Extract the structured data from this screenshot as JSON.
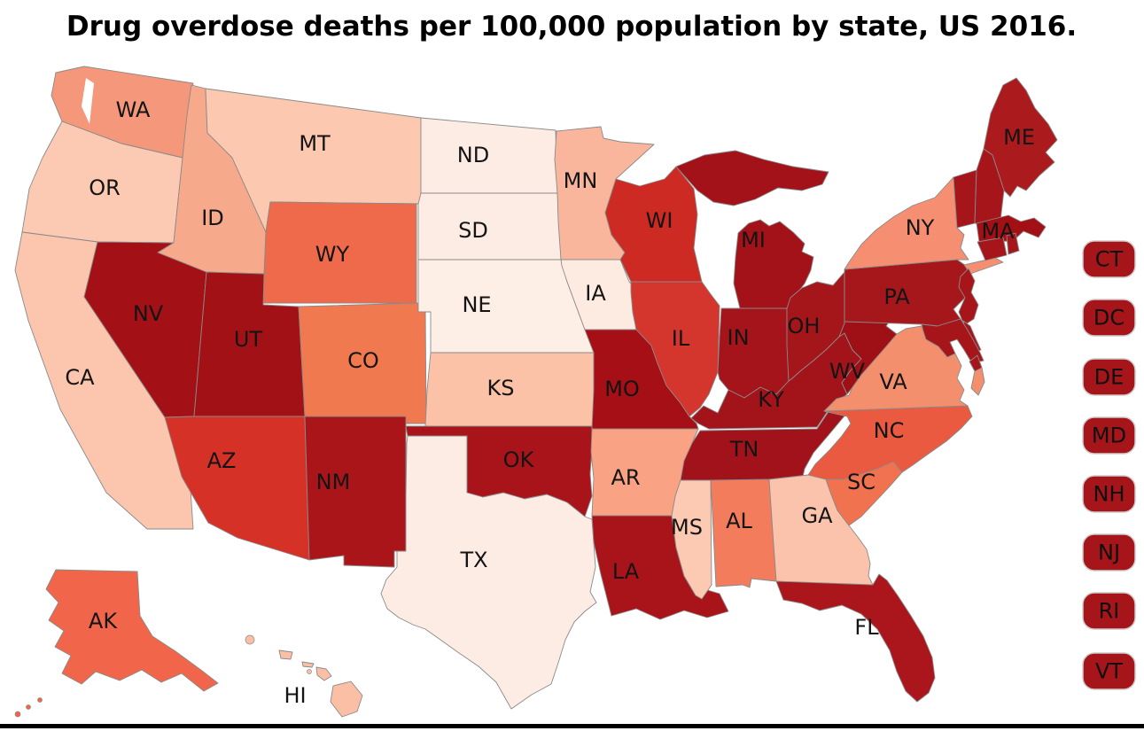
{
  "title": "Drug overdose deaths per 100,000 population by state, US 2016.",
  "figure": {
    "background": "#ffffff",
    "state_border_color": "#8a8a8a",
    "legend_box_border_color": "#cccccc",
    "bottom_rule_color": "#000000",
    "label_color": "#141414"
  },
  "states": [
    {
      "id": "WA",
      "label": "WA",
      "color": "#f5977a",
      "on_map_label": true
    },
    {
      "id": "OR",
      "label": "OR",
      "color": "#fcc9b2",
      "on_map_label": true
    },
    {
      "id": "CA",
      "label": "CA",
      "color": "#fbc6ad",
      "on_map_label": true
    },
    {
      "id": "NV",
      "label": "NV",
      "color": "#a31016",
      "on_map_label": true
    },
    {
      "id": "ID",
      "label": "ID",
      "color": "#f7a98c",
      "on_map_label": true
    },
    {
      "id": "MT",
      "label": "MT",
      "color": "#fcc8b0",
      "on_map_label": true
    },
    {
      "id": "WY",
      "label": "WY",
      "color": "#ef6a4a",
      "on_map_label": true
    },
    {
      "id": "UT",
      "label": "UT",
      "color": "#a21116",
      "on_map_label": true
    },
    {
      "id": "CO",
      "label": "CO",
      "color": "#f1794f",
      "on_map_label": true
    },
    {
      "id": "AZ",
      "label": "AZ",
      "color": "#d63127",
      "on_map_label": true
    },
    {
      "id": "NM",
      "label": "NM",
      "color": "#a91519",
      "on_map_label": true
    },
    {
      "id": "ND",
      "label": "ND",
      "color": "#fdece4",
      "on_map_label": true
    },
    {
      "id": "SD",
      "label": "SD",
      "color": "#fdece4",
      "on_map_label": true
    },
    {
      "id": "NE",
      "label": "NE",
      "color": "#fdeee6",
      "on_map_label": true
    },
    {
      "id": "KS",
      "label": "KS",
      "color": "#fbc2a7",
      "on_map_label": true
    },
    {
      "id": "OK",
      "label": "OK",
      "color": "#a81419",
      "on_map_label": true
    },
    {
      "id": "TX",
      "label": "TX",
      "color": "#fdece3",
      "on_map_label": true
    },
    {
      "id": "MN",
      "label": "MN",
      "color": "#f9b69c",
      "on_map_label": true
    },
    {
      "id": "IA",
      "label": "IA",
      "color": "#fdebe2",
      "on_map_label": true
    },
    {
      "id": "MO",
      "label": "MO",
      "color": "#a50f15",
      "on_map_label": true
    },
    {
      "id": "AR",
      "label": "AR",
      "color": "#f9a284",
      "on_map_label": true
    },
    {
      "id": "LA",
      "label": "LA",
      "color": "#a81419",
      "on_map_label": true
    },
    {
      "id": "WI",
      "label": "WI",
      "color": "#cc2a22",
      "on_map_label": true
    },
    {
      "id": "IL",
      "label": "IL",
      "color": "#d4352c",
      "on_map_label": true
    },
    {
      "id": "MI",
      "label": "MI",
      "color": "#a31219",
      "on_map_label": true
    },
    {
      "id": "IN",
      "label": "IN",
      "color": "#a4141a",
      "on_map_label": true
    },
    {
      "id": "OH",
      "label": "OH",
      "color": "#a5161b",
      "on_map_label": true
    },
    {
      "id": "KY",
      "label": "KY",
      "color": "#a3131a",
      "on_map_label": true
    },
    {
      "id": "TN",
      "label": "TN",
      "color": "#a2121b",
      "on_map_label": true
    },
    {
      "id": "MS",
      "label": "MS",
      "color": "#fcc9b3",
      "on_map_label": true
    },
    {
      "id": "AL",
      "label": "AL",
      "color": "#f37c5c",
      "on_map_label": true
    },
    {
      "id": "GA",
      "label": "GA",
      "color": "#fbc3ab",
      "on_map_label": true
    },
    {
      "id": "FL",
      "label": "FL",
      "color": "#aa161b",
      "on_map_label": true
    },
    {
      "id": "SC",
      "label": "SC",
      "color": "#f0724f",
      "on_map_label": true
    },
    {
      "id": "NC",
      "label": "NC",
      "color": "#e95a40",
      "on_map_label": true
    },
    {
      "id": "VA",
      "label": "VA",
      "color": "#f48f6e",
      "on_map_label": true
    },
    {
      "id": "WV",
      "label": "WV",
      "color": "#9e1016",
      "on_map_label": true
    },
    {
      "id": "PA",
      "label": "PA",
      "color": "#a6171c",
      "on_map_label": true
    },
    {
      "id": "NY",
      "label": "NY",
      "color": "#f68f72",
      "on_map_label": true
    },
    {
      "id": "ME",
      "label": "ME",
      "color": "#ab1a1d",
      "on_map_label": true
    },
    {
      "id": "VT",
      "label": "VT",
      "color": "#a5151a",
      "on_map_label": false
    },
    {
      "id": "NH",
      "label": "NH",
      "color": "#a5151a",
      "on_map_label": false
    },
    {
      "id": "MA",
      "label": "MA",
      "color": "#a20f15",
      "on_map_label": true
    },
    {
      "id": "CT",
      "label": "CT",
      "color": "#a5151a",
      "on_map_label": false
    },
    {
      "id": "RI",
      "label": "RI",
      "color": "#a5151a",
      "on_map_label": false
    },
    {
      "id": "NJ",
      "label": "NJ",
      "color": "#a5151a",
      "on_map_label": false
    },
    {
      "id": "DE",
      "label": "DE",
      "color": "#a5151a",
      "on_map_label": false
    },
    {
      "id": "MD",
      "label": "MD",
      "color": "#a5151a",
      "on_map_label": false
    },
    {
      "id": "DC",
      "label": "DC",
      "color": "#a5151a",
      "on_map_label": false
    },
    {
      "id": "AK",
      "label": "AK",
      "color": "#f1654a",
      "on_map_label": true
    },
    {
      "id": "HI",
      "label": "HI",
      "color": "#fbbfa6",
      "on_map_label": true
    }
  ],
  "legend": {
    "items": [
      "CT",
      "DC",
      "DE",
      "MD",
      "NH",
      "NJ",
      "RI",
      "VT"
    ]
  }
}
